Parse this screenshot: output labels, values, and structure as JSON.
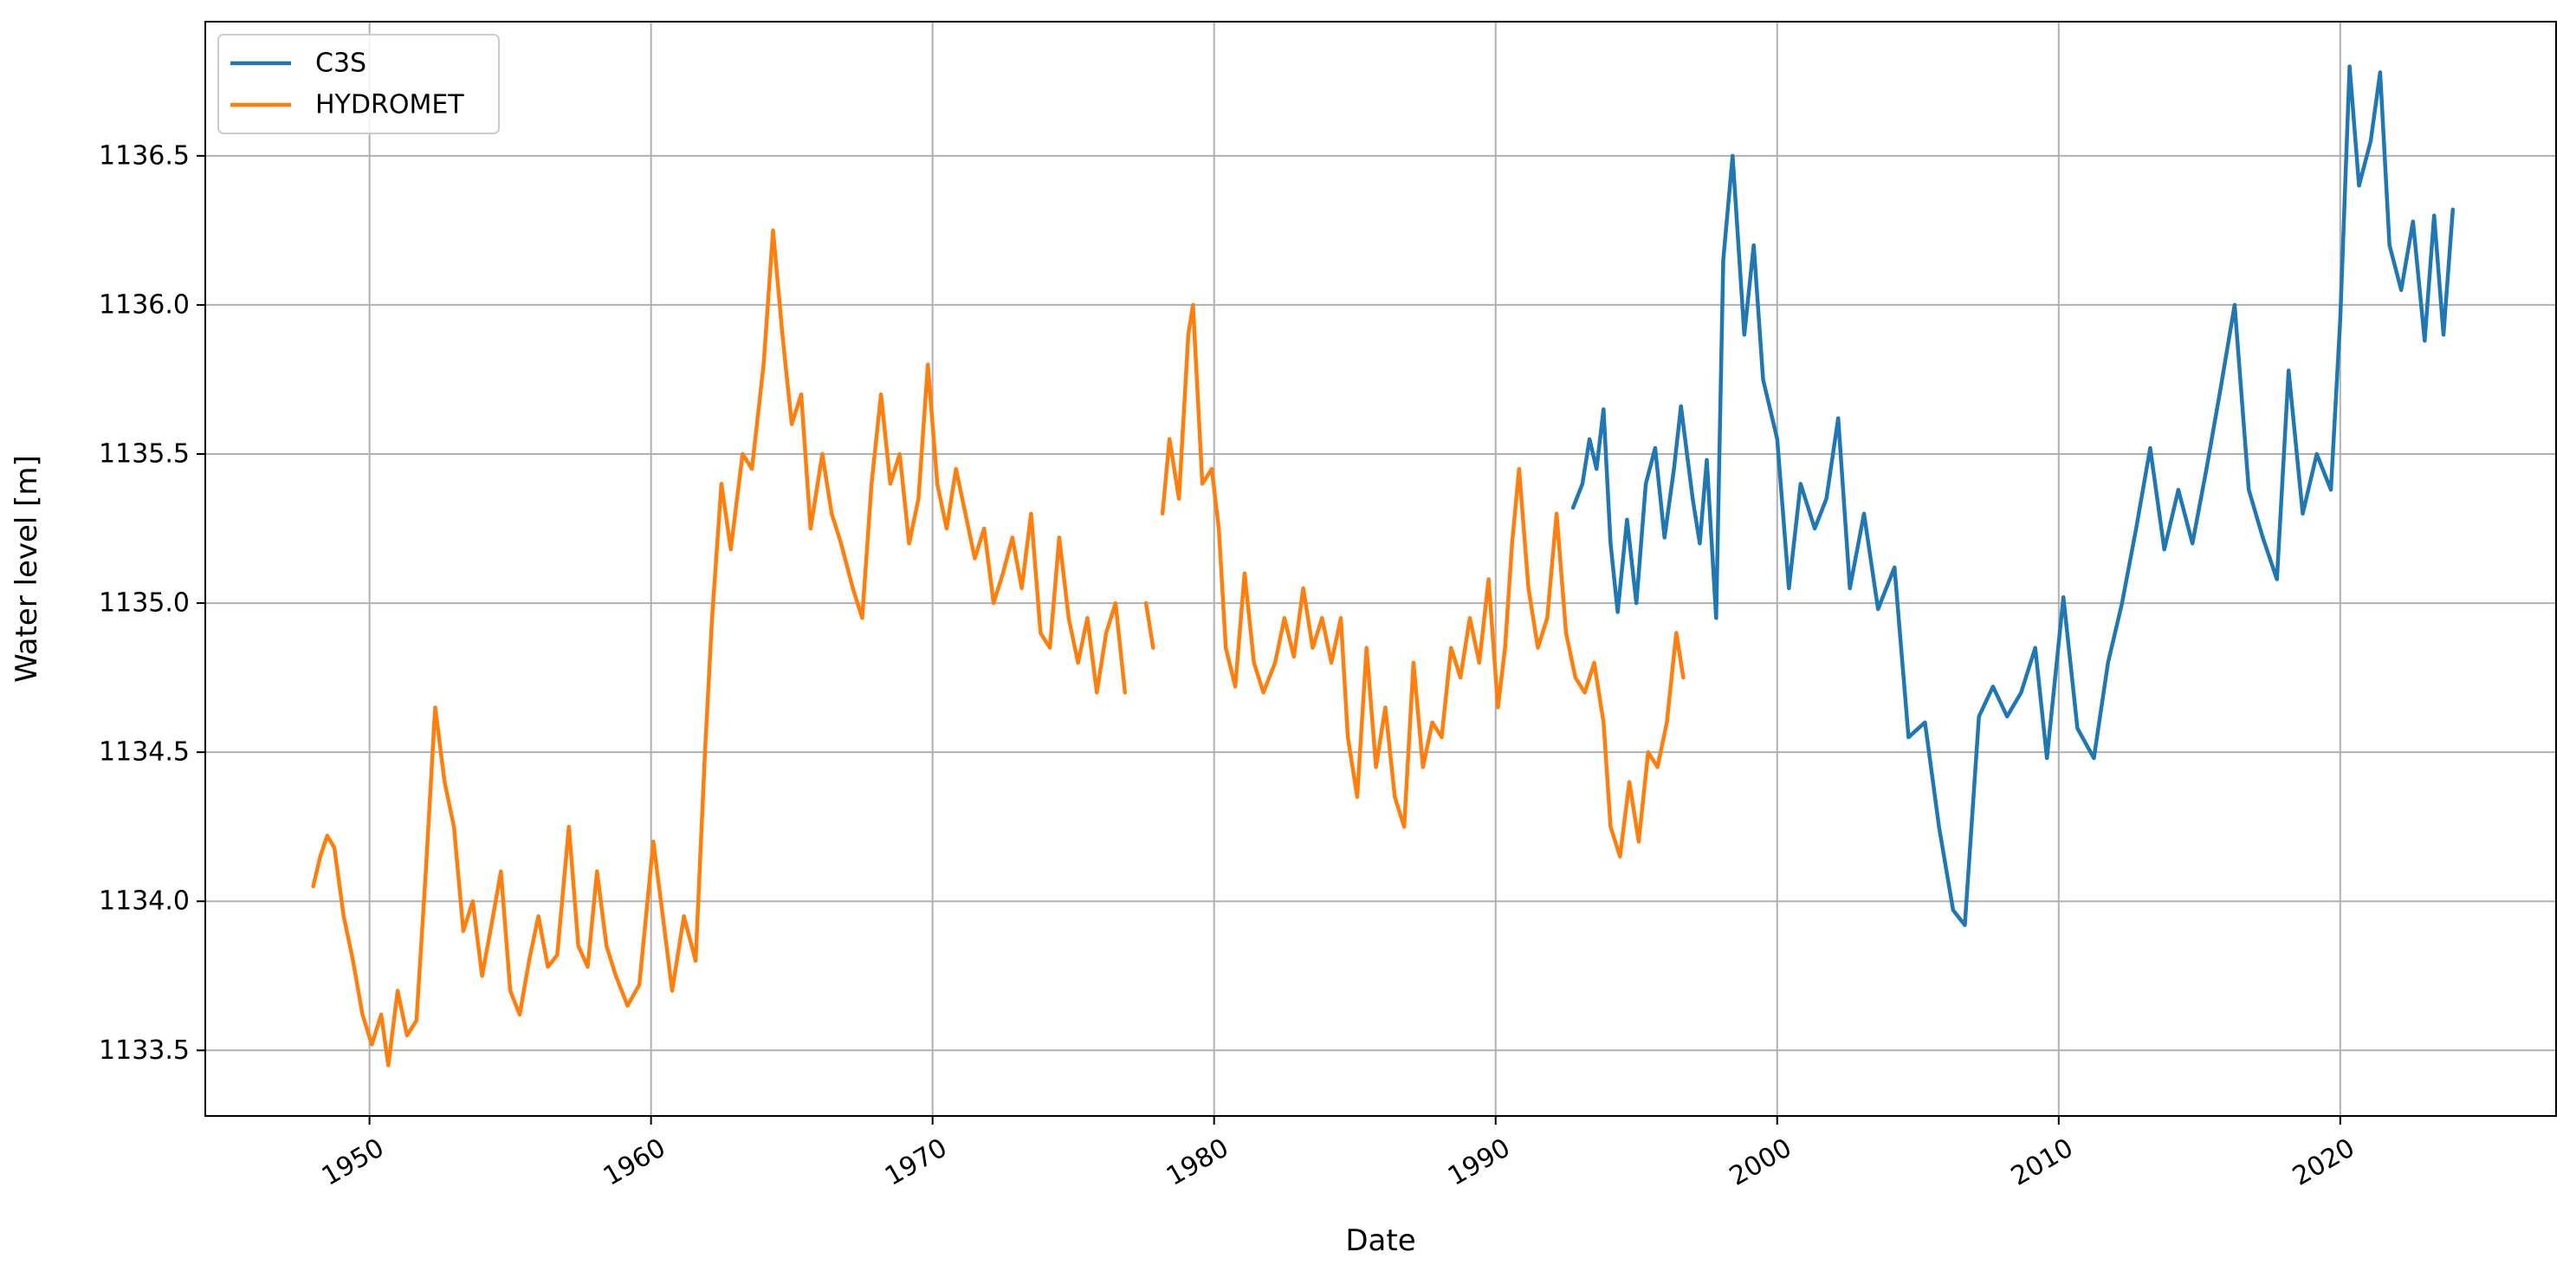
{
  "chart_data": {
    "type": "line",
    "xlabel": "Date",
    "ylabel": "Water level [m]",
    "xlim": [
      "1944-03-01",
      "2027-09-01"
    ],
    "ylim": [
      1133.28,
      1136.95
    ],
    "x_ticks": [
      "1950",
      "1960",
      "1970",
      "1980",
      "1990",
      "2000",
      "2010",
      "2020"
    ],
    "y_ticks": [
      "1133.5",
      "1134.0",
      "1134.5",
      "1135.0",
      "1135.5",
      "1136.0",
      "1136.5"
    ],
    "grid": true,
    "legend_position": "top-left",
    "series": [
      {
        "name": "C3S",
        "color": "#1f77b4",
        "points": [
          [
            "1992-10",
            1135.32
          ],
          [
            "1993-02",
            1135.4
          ],
          [
            "1993-05",
            1135.55
          ],
          [
            "1993-08",
            1135.45
          ],
          [
            "1993-11",
            1135.65
          ],
          [
            "1994-02",
            1135.2
          ],
          [
            "1994-05",
            1134.97
          ],
          [
            "1994-09",
            1135.28
          ],
          [
            "1995-01",
            1135.0
          ],
          [
            "1995-05",
            1135.4
          ],
          [
            "1995-09",
            1135.52
          ],
          [
            "1996-01",
            1135.22
          ],
          [
            "1996-05",
            1135.45
          ],
          [
            "1996-08",
            1135.66
          ],
          [
            "1997-01",
            1135.35
          ],
          [
            "1997-04",
            1135.2
          ],
          [
            "1997-07",
            1135.48
          ],
          [
            "1997-11",
            1134.95
          ],
          [
            "1998-02",
            1136.15
          ],
          [
            "1998-06",
            1136.5
          ],
          [
            "1998-11",
            1135.9
          ],
          [
            "1999-03",
            1136.2
          ],
          [
            "1999-07",
            1135.75
          ],
          [
            "2000-01",
            1135.55
          ],
          [
            "2000-06",
            1135.05
          ],
          [
            "2000-11",
            1135.4
          ],
          [
            "2001-05",
            1135.25
          ],
          [
            "2001-10",
            1135.35
          ],
          [
            "2002-03",
            1135.62
          ],
          [
            "2002-08",
            1135.05
          ],
          [
            "2003-02",
            1135.3
          ],
          [
            "2003-08",
            1134.98
          ],
          [
            "2004-03",
            1135.12
          ],
          [
            "2004-09",
            1134.55
          ],
          [
            "2005-04",
            1134.6
          ],
          [
            "2005-10",
            1134.25
          ],
          [
            "2006-04",
            1133.97
          ],
          [
            "2006-09",
            1133.92
          ],
          [
            "2007-03",
            1134.62
          ],
          [
            "2007-09",
            1134.72
          ],
          [
            "2008-03",
            1134.62
          ],
          [
            "2008-09",
            1134.7
          ],
          [
            "2009-03",
            1134.85
          ],
          [
            "2009-08",
            1134.48
          ],
          [
            "2010-03",
            1135.02
          ],
          [
            "2010-09",
            1134.58
          ],
          [
            "2011-04",
            1134.48
          ],
          [
            "2011-10",
            1134.8
          ],
          [
            "2012-04",
            1135.0
          ],
          [
            "2012-10",
            1135.25
          ],
          [
            "2013-04",
            1135.52
          ],
          [
            "2013-10",
            1135.18
          ],
          [
            "2014-04",
            1135.38
          ],
          [
            "2014-10",
            1135.2
          ],
          [
            "2015-04",
            1135.45
          ],
          [
            "2015-10",
            1135.72
          ],
          [
            "2016-04",
            1136.0
          ],
          [
            "2016-10",
            1135.38
          ],
          [
            "2017-04",
            1135.22
          ],
          [
            "2017-10",
            1135.08
          ],
          [
            "2018-03",
            1135.78
          ],
          [
            "2018-09",
            1135.3
          ],
          [
            "2019-03",
            1135.5
          ],
          [
            "2019-09",
            1135.38
          ],
          [
            "2020-01",
            1135.95
          ],
          [
            "2020-05",
            1136.8
          ],
          [
            "2020-09",
            1136.4
          ],
          [
            "2021-02",
            1136.55
          ],
          [
            "2021-06",
            1136.78
          ],
          [
            "2021-10",
            1136.2
          ],
          [
            "2022-03",
            1136.05
          ],
          [
            "2022-08",
            1136.28
          ],
          [
            "2023-01",
            1135.88
          ],
          [
            "2023-05",
            1136.3
          ],
          [
            "2023-09",
            1135.9
          ],
          [
            "2024-01",
            1136.32
          ]
        ]
      },
      {
        "name": "HYDROMET",
        "color": "#ff7f0e",
        "segments": [
          [
            [
              "1948-01",
              1134.05
            ],
            [
              "1948-04",
              1134.15
            ],
            [
              "1948-07",
              1134.22
            ],
            [
              "1948-10",
              1134.18
            ],
            [
              "1949-02",
              1133.95
            ],
            [
              "1949-06",
              1133.8
            ],
            [
              "1949-10",
              1133.62
            ],
            [
              "1950-02",
              1133.52
            ],
            [
              "1950-06",
              1133.62
            ],
            [
              "1950-09",
              1133.45
            ],
            [
              "1951-01",
              1133.7
            ],
            [
              "1951-05",
              1133.55
            ],
            [
              "1951-09",
              1133.6
            ],
            [
              "1952-01",
              1134.1
            ],
            [
              "1952-05",
              1134.65
            ],
            [
              "1952-09",
              1134.4
            ],
            [
              "1953-01",
              1134.25
            ],
            [
              "1953-05",
              1133.9
            ],
            [
              "1953-09",
              1134.0
            ],
            [
              "1954-01",
              1133.75
            ],
            [
              "1954-05",
              1133.92
            ],
            [
              "1954-09",
              1134.1
            ],
            [
              "1955-01",
              1133.7
            ],
            [
              "1955-05",
              1133.62
            ],
            [
              "1955-09",
              1133.8
            ],
            [
              "1956-01",
              1133.95
            ],
            [
              "1956-05",
              1133.78
            ],
            [
              "1956-09",
              1133.82
            ],
            [
              "1957-02",
              1134.25
            ],
            [
              "1957-06",
              1133.85
            ],
            [
              "1957-10",
              1133.78
            ],
            [
              "1958-02",
              1134.1
            ],
            [
              "1958-06",
              1133.85
            ],
            [
              "1958-10",
              1133.75
            ],
            [
              "1959-03",
              1133.65
            ],
            [
              "1959-08",
              1133.72
            ],
            [
              "1960-02",
              1134.2
            ],
            [
              "1960-06",
              1133.95
            ],
            [
              "1960-10",
              1133.7
            ],
            [
              "1961-03",
              1133.95
            ],
            [
              "1961-08",
              1133.8
            ],
            [
              "1961-12",
              1134.5
            ],
            [
              "1962-03",
              1134.95
            ],
            [
              "1962-07",
              1135.4
            ],
            [
              "1962-11",
              1135.18
            ],
            [
              "1963-04",
              1135.5
            ],
            [
              "1963-08",
              1135.45
            ],
            [
              "1964-01",
              1135.8
            ],
            [
              "1964-05",
              1136.25
            ],
            [
              "1964-09",
              1135.9
            ],
            [
              "1965-01",
              1135.6
            ],
            [
              "1965-05",
              1135.7
            ],
            [
              "1965-09",
              1135.25
            ],
            [
              "1966-02",
              1135.5
            ],
            [
              "1966-06",
              1135.3
            ],
            [
              "1966-10",
              1135.2
            ],
            [
              "1967-03",
              1135.05
            ],
            [
              "1967-07",
              1134.95
            ],
            [
              "1967-11",
              1135.4
            ],
            [
              "1968-03",
              1135.7
            ],
            [
              "1968-07",
              1135.4
            ],
            [
              "1968-11",
              1135.5
            ],
            [
              "1969-03",
              1135.2
            ],
            [
              "1969-07",
              1135.35
            ],
            [
              "1969-11",
              1135.8
            ],
            [
              "1970-03",
              1135.4
            ],
            [
              "1970-07",
              1135.25
            ],
            [
              "1970-11",
              1135.45
            ],
            [
              "1971-03",
              1135.3
            ],
            [
              "1971-07",
              1135.15
            ],
            [
              "1971-11",
              1135.25
            ],
            [
              "1972-03",
              1135.0
            ],
            [
              "1972-07",
              1135.1
            ],
            [
              "1972-11",
              1135.22
            ],
            [
              "1973-03",
              1135.05
            ],
            [
              "1973-07",
              1135.3
            ],
            [
              "1973-11",
              1134.9
            ],
            [
              "1974-03",
              1134.85
            ],
            [
              "1974-07",
              1135.22
            ],
            [
              "1974-11",
              1134.95
            ],
            [
              "1975-03",
              1134.8
            ],
            [
              "1975-07",
              1134.95
            ],
            [
              "1975-11",
              1134.7
            ],
            [
              "1976-03",
              1134.9
            ],
            [
              "1976-07",
              1135.0
            ],
            [
              "1976-11",
              1134.7
            ]
          ],
          [
            [
              "1977-08",
              1135.0
            ],
            [
              "1977-11",
              1134.85
            ]
          ],
          [
            [
              "1978-03",
              1135.3
            ],
            [
              "1978-06",
              1135.55
            ],
            [
              "1978-10",
              1135.35
            ],
            [
              "1979-02",
              1135.9
            ],
            [
              "1979-04",
              1136.0
            ],
            [
              "1979-08",
              1135.4
            ],
            [
              "1979-12",
              1135.45
            ],
            [
              "1980-03",
              1135.25
            ],
            [
              "1980-06",
              1134.85
            ],
            [
              "1980-10",
              1134.72
            ],
            [
              "1981-02",
              1135.1
            ],
            [
              "1981-06",
              1134.8
            ],
            [
              "1981-10",
              1134.7
            ],
            [
              "1982-03",
              1134.8
            ],
            [
              "1982-07",
              1134.95
            ],
            [
              "1982-11",
              1134.82
            ],
            [
              "1983-03",
              1135.05
            ],
            [
              "1983-07",
              1134.85
            ],
            [
              "1983-11",
              1134.95
            ],
            [
              "1984-03",
              1134.8
            ],
            [
              "1984-07",
              1134.95
            ],
            [
              "1984-10",
              1134.55
            ],
            [
              "1985-02",
              1134.35
            ],
            [
              "1985-06",
              1134.85
            ],
            [
              "1985-10",
              1134.45
            ],
            [
              "1986-02",
              1134.65
            ],
            [
              "1986-06",
              1134.35
            ],
            [
              "1986-10",
              1134.25
            ],
            [
              "1987-02",
              1134.8
            ],
            [
              "1987-06",
              1134.45
            ],
            [
              "1987-10",
              1134.6
            ],
            [
              "1988-02",
              1134.55
            ],
            [
              "1988-06",
              1134.85
            ],
            [
              "1988-10",
              1134.75
            ],
            [
              "1989-02",
              1134.95
            ],
            [
              "1989-06",
              1134.8
            ],
            [
              "1989-10",
              1135.08
            ],
            [
              "1990-02",
              1134.65
            ],
            [
              "1990-05",
              1134.85
            ],
            [
              "1990-08",
              1135.2
            ],
            [
              "1990-11",
              1135.45
            ],
            [
              "1991-03",
              1135.05
            ],
            [
              "1991-07",
              1134.85
            ],
            [
              "1991-11",
              1134.95
            ],
            [
              "1992-03",
              1135.3
            ],
            [
              "1992-07",
              1134.9
            ],
            [
              "1992-11",
              1134.75
            ],
            [
              "1993-03",
              1134.7
            ],
            [
              "1993-07",
              1134.8
            ],
            [
              "1993-11",
              1134.6
            ],
            [
              "1994-02",
              1134.25
            ],
            [
              "1994-06",
              1134.15
            ],
            [
              "1994-10",
              1134.4
            ],
            [
              "1995-02",
              1134.2
            ],
            [
              "1995-06",
              1134.5
            ],
            [
              "1995-10",
              1134.45
            ],
            [
              "1996-02",
              1134.6
            ],
            [
              "1996-06",
              1134.9
            ],
            [
              "1996-09",
              1134.75
            ]
          ]
        ]
      }
    ]
  }
}
